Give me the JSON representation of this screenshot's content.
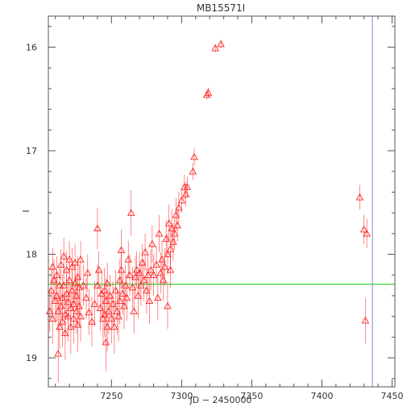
{
  "chart_data": {
    "type": "scatter",
    "title": "MB15571I",
    "xlabel": "JD − 2450000",
    "ylabel": "I",
    "xlim": [
      7205,
      7452
    ],
    "ylim": [
      19.28,
      15.7
    ],
    "y_axis_inverted": true,
    "grid": false,
    "x_ticks": [
      7250,
      7300,
      7350,
      7400,
      7450
    ],
    "y_ticks": [
      16,
      17,
      18,
      19
    ],
    "marker": "open-triangle",
    "colors": {
      "points": "#ff2020",
      "baseline": "#00cc00",
      "marker_line": "#8888cc",
      "axes": "#555555"
    },
    "baseline_mag": 18.29,
    "vertical_marker_x": 7436,
    "series": [
      {
        "points": [
          [
            7206,
            18.55,
            0.2
          ],
          [
            7207,
            18.35,
            0.22
          ],
          [
            7208,
            18.12,
            0.18
          ],
          [
            7208,
            18.62,
            0.25
          ],
          [
            7209,
            18.25,
            0.2
          ],
          [
            7210,
            18.45,
            0.22
          ],
          [
            7211,
            18.2,
            0.18
          ],
          [
            7211,
            18.4,
            0.25
          ],
          [
            7212,
            18.55,
            0.2
          ],
          [
            7212,
            18.96,
            0.28
          ],
          [
            7213,
            18.7,
            0.22
          ],
          [
            7213,
            18.3,
            0.18
          ],
          [
            7214,
            18.5,
            0.2
          ],
          [
            7214,
            18.1,
            0.15
          ],
          [
            7215,
            18.65,
            0.25
          ],
          [
            7215,
            18.42,
            0.22
          ],
          [
            7216,
            18.02,
            0.18
          ],
          [
            7216,
            18.3,
            0.2
          ],
          [
            7217,
            18.58,
            0.22
          ],
          [
            7217,
            18.76,
            0.26
          ],
          [
            7218,
            18.38,
            0.2
          ],
          [
            7218,
            18.15,
            0.18
          ],
          [
            7219,
            18.6,
            0.24
          ],
          [
            7219,
            18.46,
            0.22
          ],
          [
            7220,
            18.05,
            0.18
          ],
          [
            7220,
            18.25,
            0.2
          ],
          [
            7221,
            18.52,
            0.22
          ],
          [
            7221,
            18.7,
            0.26
          ],
          [
            7222,
            18.35,
            0.2
          ],
          [
            7222,
            18.12,
            0.18
          ],
          [
            7223,
            18.48,
            0.22
          ],
          [
            7223,
            18.62,
            0.24
          ],
          [
            7224,
            18.08,
            0.18
          ],
          [
            7224,
            18.28,
            0.2
          ],
          [
            7225,
            18.55,
            0.22
          ],
          [
            7225,
            18.4,
            0.2
          ],
          [
            7226,
            18.68,
            0.26
          ],
          [
            7226,
            18.22,
            0.2
          ],
          [
            7227,
            18.32,
            0.22
          ],
          [
            7227,
            18.5,
            0.2
          ],
          [
            7228,
            18.05,
            0.18
          ],
          [
            7228,
            18.6,
            0.24
          ],
          [
            7230,
            18.3,
            0.2
          ],
          [
            7232,
            18.42,
            0.2
          ],
          [
            7233,
            18.18,
            0.18
          ],
          [
            7234,
            18.56,
            0.22
          ],
          [
            7236,
            18.65,
            0.24
          ],
          [
            7238,
            18.48,
            0.22
          ],
          [
            7240,
            17.75,
            0.2
          ],
          [
            7240,
            18.3,
            0.2
          ],
          [
            7241,
            18.15,
            0.18
          ],
          [
            7242,
            18.52,
            0.22
          ],
          [
            7243,
            18.38,
            0.2
          ],
          [
            7244,
            18.62,
            0.24
          ],
          [
            7245,
            18.35,
            0.22
          ],
          [
            7245,
            18.58,
            0.22
          ],
          [
            7246,
            18.85,
            0.28
          ],
          [
            7246,
            18.45,
            0.22
          ],
          [
            7247,
            18.28,
            0.2
          ],
          [
            7247,
            18.7,
            0.24
          ],
          [
            7248,
            18.55,
            0.22
          ],
          [
            7249,
            18.4,
            0.2
          ],
          [
            7250,
            18.62,
            0.24
          ],
          [
            7251,
            18.48,
            0.22
          ],
          [
            7252,
            18.7,
            0.26
          ],
          [
            7253,
            18.35,
            0.2
          ],
          [
            7254,
            18.55,
            0.22
          ],
          [
            7255,
            18.6,
            0.24
          ],
          [
            7256,
            18.25,
            0.2
          ],
          [
            7256,
            18.45,
            0.22
          ],
          [
            7257,
            18.15,
            0.18
          ],
          [
            7257,
            17.96,
            0.2
          ],
          [
            7258,
            18.38,
            0.2
          ],
          [
            7259,
            18.5,
            0.22
          ],
          [
            7260,
            18.3,
            0.2
          ],
          [
            7261,
            18.42,
            0.22
          ],
          [
            7262,
            18.05,
            0.18
          ],
          [
            7263,
            18.2,
            0.2
          ],
          [
            7264,
            17.6,
            0.22
          ],
          [
            7265,
            18.32,
            0.2
          ],
          [
            7266,
            18.55,
            0.22
          ],
          [
            7267,
            18.22,
            0.2
          ],
          [
            7268,
            18.15,
            0.18
          ],
          [
            7269,
            18.4,
            0.22
          ],
          [
            7270,
            18.18,
            0.2
          ],
          [
            7271,
            18.3,
            0.2
          ],
          [
            7272,
            18.08,
            0.18
          ],
          [
            7273,
            18.25,
            0.2
          ],
          [
            7274,
            17.98,
            0.18
          ],
          [
            7275,
            18.35,
            0.22
          ],
          [
            7276,
            18.2,
            0.2
          ],
          [
            7277,
            18.45,
            0.22
          ],
          [
            7278,
            18.15,
            0.2
          ],
          [
            7279,
            17.9,
            0.18
          ],
          [
            7280,
            18.2,
            0.2
          ],
          [
            7282,
            18.1,
            0.18
          ],
          [
            7283,
            18.42,
            0.22
          ],
          [
            7284,
            17.8,
            0.18
          ],
          [
            7285,
            18.18,
            0.2
          ],
          [
            7286,
            18.05,
            0.18
          ],
          [
            7287,
            18.25,
            0.2
          ],
          [
            7288,
            18.12,
            0.18
          ],
          [
            7289,
            17.85,
            0.18
          ],
          [
            7290,
            18.5,
            0.22
          ],
          [
            7290,
            18.0,
            0.2
          ],
          [
            7291,
            17.7,
            0.18
          ],
          [
            7292,
            17.95,
            0.2
          ],
          [
            7292,
            18.15,
            0.18
          ],
          [
            7293,
            17.75,
            0.18
          ],
          [
            7294,
            17.88,
            0.18
          ],
          [
            7295,
            17.8,
            0.16
          ],
          [
            7296,
            17.62,
            0.16
          ],
          [
            7297,
            17.72,
            0.16
          ],
          [
            7298,
            17.55,
            0.15
          ],
          [
            7300,
            17.48,
            0.12
          ],
          [
            7302,
            17.35,
            0.12
          ],
          [
            7303,
            17.42,
            0.12
          ],
          [
            7304,
            17.35,
            0.1
          ],
          [
            7308,
            17.2,
            0.08
          ],
          [
            7309,
            17.06,
            0.08
          ],
          [
            7318,
            16.46,
            0.05
          ],
          [
            7319,
            16.44,
            0.05
          ],
          [
            7324,
            16.01,
            0.04
          ],
          [
            7328,
            15.97,
            0.04
          ],
          [
            7427,
            17.45,
            0.12
          ],
          [
            7430,
            17.76,
            0.14
          ],
          [
            7431,
            18.64,
            0.22
          ],
          [
            7432,
            17.8,
            0.14
          ]
        ]
      }
    ]
  }
}
